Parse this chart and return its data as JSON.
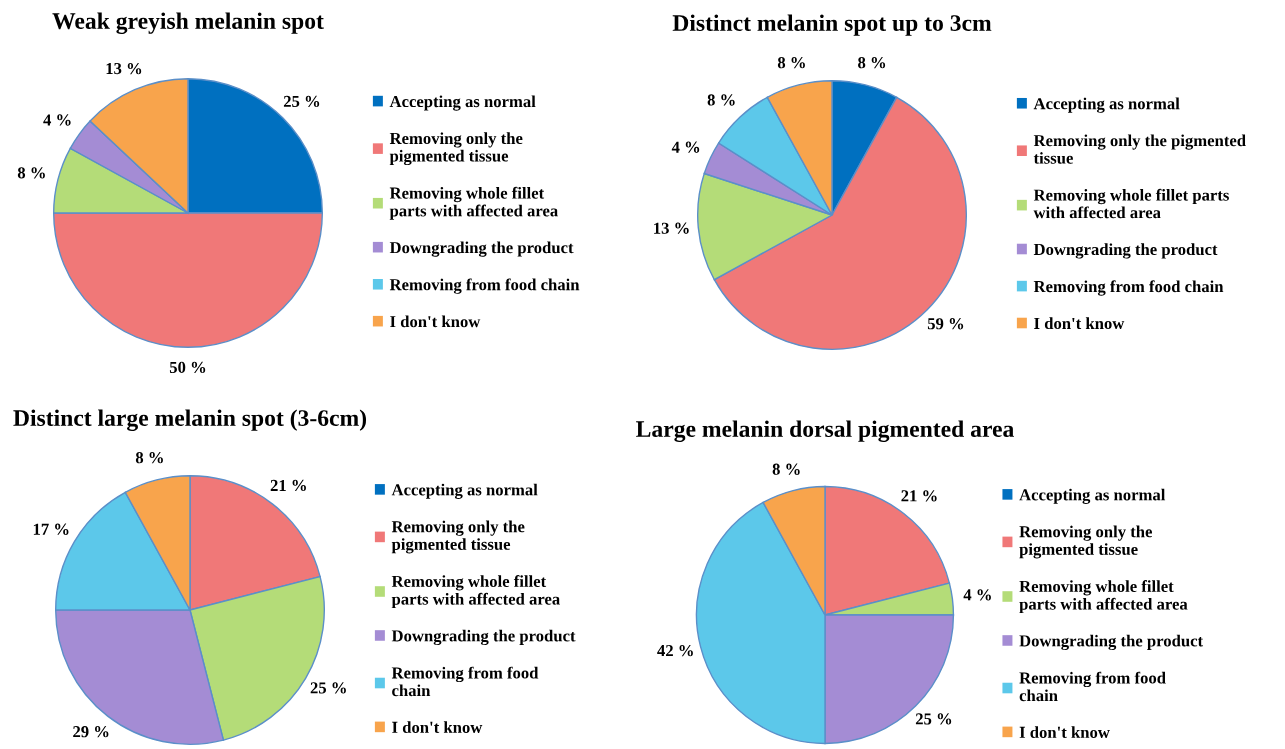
{
  "chart_data": [
    {
      "type": "pie",
      "title": "Weak greyish melanin spot",
      "categories": [
        "Accepting as normal",
        "Removing only the\npigmented tissue",
        "Removing whole fillet\nparts with affected area",
        "Downgrading the product",
        "Removing from food chain",
        "I don't know"
      ],
      "values": [
        25,
        50,
        8,
        4,
        0,
        13
      ],
      "value_labels": [
        "25 %",
        "50 %",
        "8 %",
        "4 %",
        null,
        "13 %"
      ],
      "colors": [
        "#0070c0",
        "#f07878",
        "#b4dc78",
        "#a48cd4",
        "#5cc8ea",
        "#f8a44c"
      ],
      "legend": "right"
    },
    {
      "type": "pie",
      "title": "Distinct melanin spot up to 3cm",
      "categories": [
        "Accepting as normal",
        "Removing only the pigmented\ntissue",
        "Removing whole fillet parts\nwith affected area",
        "Downgrading the product",
        "Removing from food chain",
        "I don't know"
      ],
      "values": [
        8,
        59,
        13,
        4,
        8,
        8
      ],
      "value_labels": [
        "8 %",
        "59 %",
        "13 %",
        "4 %",
        "8 %",
        "8 %"
      ],
      "colors": [
        "#0070c0",
        "#f07878",
        "#b4dc78",
        "#a48cd4",
        "#5cc8ea",
        "#f8a44c"
      ],
      "legend": "right"
    },
    {
      "type": "pie",
      "title": "Distinct large melanin spot (3-6cm)",
      "categories": [
        "Accepting as normal",
        "Removing only the\npigmented tissue",
        "Removing whole fillet\nparts with affected area",
        "Downgrading the product",
        "Removing from food\nchain",
        "I don't know"
      ],
      "values": [
        0,
        21,
        25,
        29,
        17,
        8
      ],
      "value_labels": [
        null,
        "21 %",
        "25 %",
        "29 %",
        "17 %",
        "8 %"
      ],
      "colors": [
        "#0070c0",
        "#f07878",
        "#b4dc78",
        "#a48cd4",
        "#5cc8ea",
        "#f8a44c"
      ],
      "legend": "right"
    },
    {
      "type": "pie",
      "title": "Large melanin dorsal pigmented area",
      "categories": [
        "Accepting as normal",
        "Removing only the\npigmented tissue",
        "Removing whole fillet\nparts with affected area",
        "Downgrading the product",
        "Removing from food\nchain",
        "I don't know"
      ],
      "values": [
        0,
        21,
        4,
        25,
        42,
        8
      ],
      "value_labels": [
        null,
        "21 %",
        "4 %",
        "25 %",
        "42 %",
        "8 %"
      ],
      "colors": [
        "#0070c0",
        "#f07878",
        "#b4dc78",
        "#a48cd4",
        "#5cc8ea",
        "#f8a44c"
      ],
      "legend": "right"
    }
  ]
}
